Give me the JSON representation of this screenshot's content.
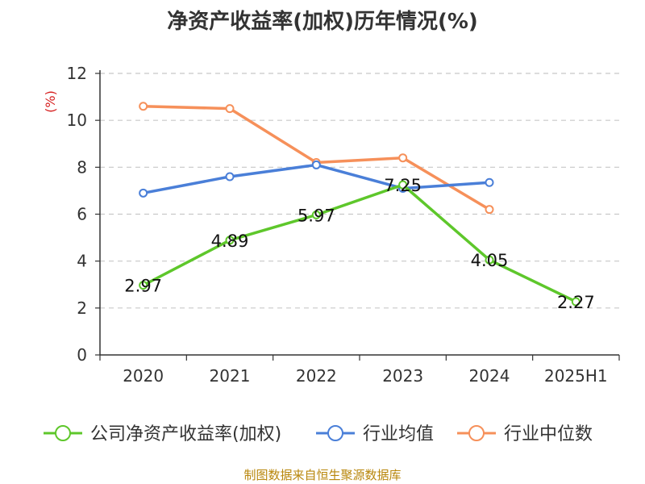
{
  "chart_data": {
    "type": "line",
    "title": "净资产收益率(加权)历年情况(%)",
    "ylabel": "(%)",
    "xlabel": "",
    "categories": [
      "2020",
      "2021",
      "2022",
      "2023",
      "2024",
      "2025H1"
    ],
    "ylim": [
      0,
      12
    ],
    "yticks": [
      0,
      2,
      4,
      6,
      8,
      10,
      12
    ],
    "grid": true,
    "legend_position": "bottom",
    "series": [
      {
        "name": "公司净资产收益率(加权)",
        "color": "#5ec72b",
        "values": [
          2.97,
          4.89,
          5.97,
          7.25,
          4.05,
          2.27
        ],
        "data_labels": true
      },
      {
        "name": "行业均值",
        "color": "#4a7fd8",
        "values": [
          6.9,
          7.6,
          8.1,
          7.1,
          7.35,
          null
        ],
        "data_labels": false
      },
      {
        "name": "行业中位数",
        "color": "#f6905a",
        "values": [
          10.6,
          10.5,
          8.2,
          8.4,
          6.2,
          null
        ],
        "data_labels": false
      }
    ]
  },
  "source": "制图数据来自恒生聚源数据库"
}
